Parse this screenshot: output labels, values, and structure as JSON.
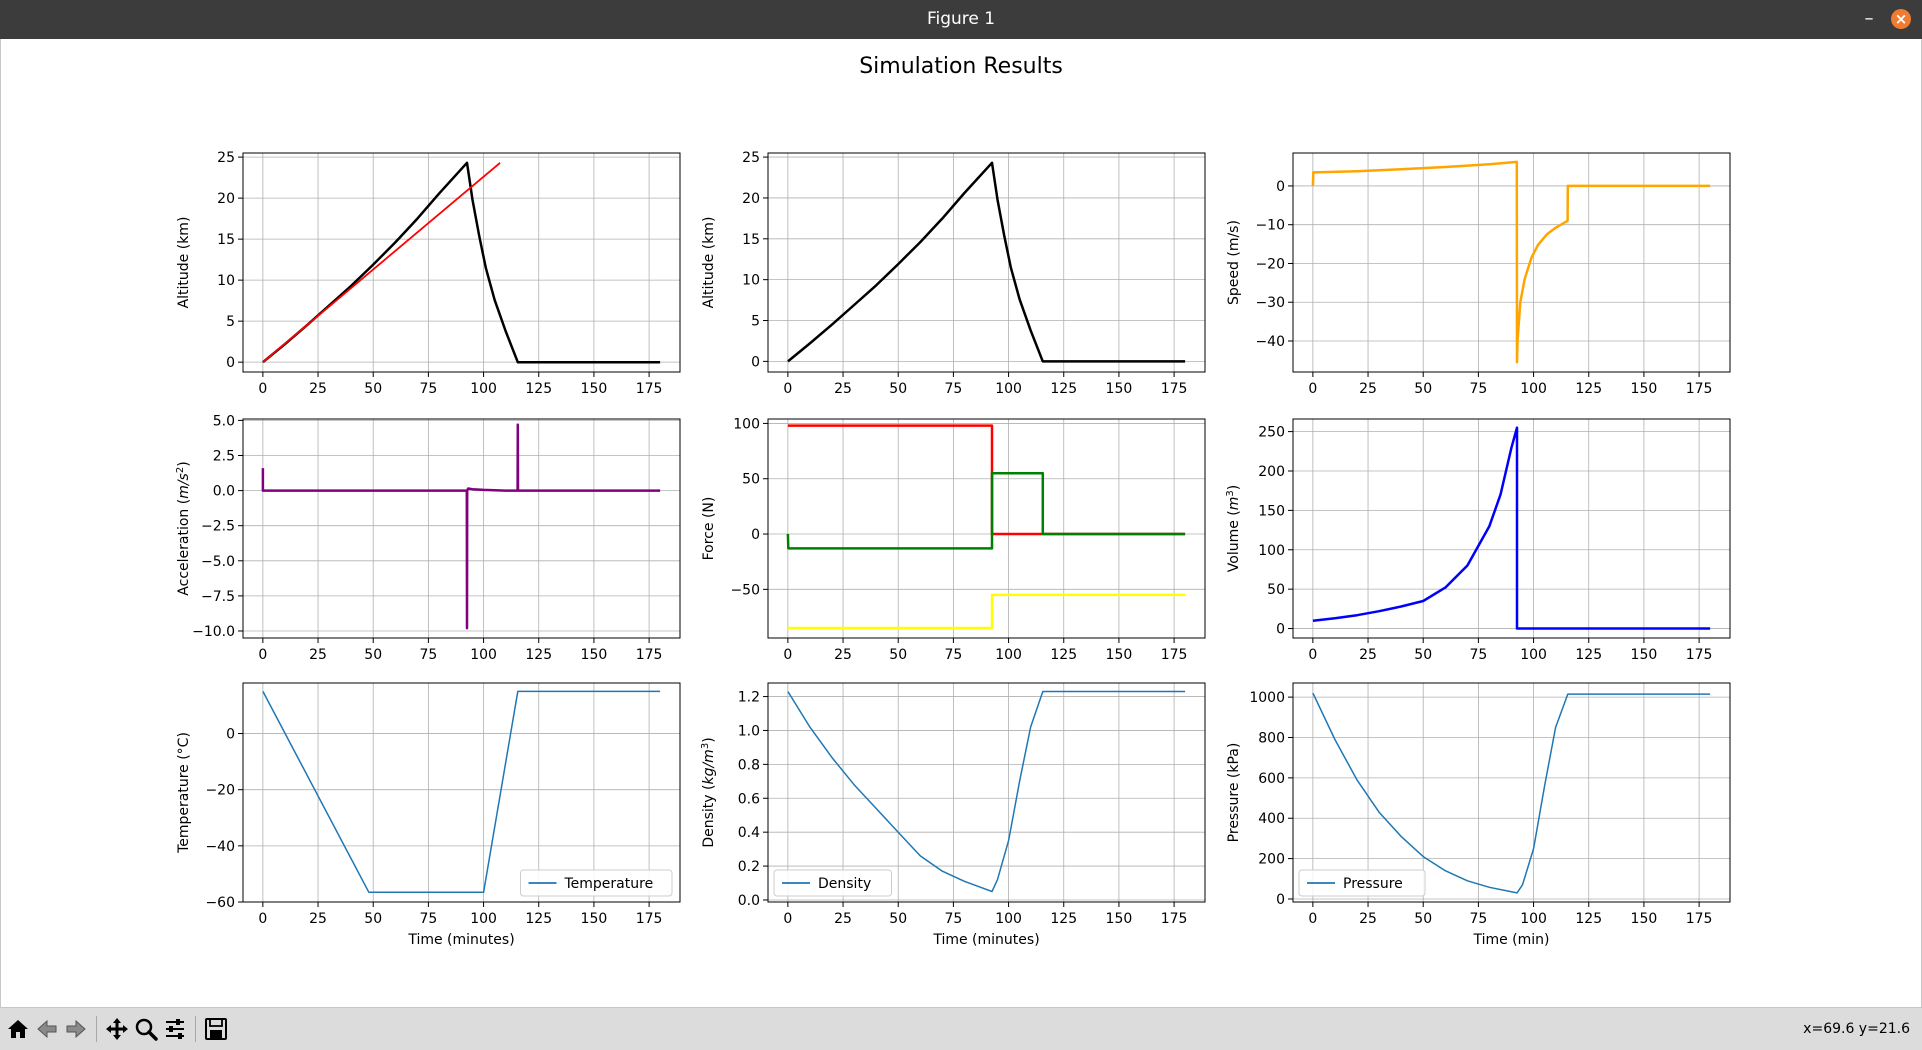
{
  "window": {
    "title": "Figure 1",
    "minimize_label": "–",
    "close_label": "×"
  },
  "figure": {
    "suptitle": "Simulation Results"
  },
  "toolbar": {
    "buttons": [
      "home-icon",
      "back-icon",
      "forward-icon",
      "pan-icon",
      "zoom-icon",
      "configure-subplots-icon",
      "save-icon"
    ],
    "coords": "x=69.6 y=21.6"
  },
  "chart_data": [
    {
      "type": "line",
      "ylabel": "Altitude (km)",
      "xlabel": "",
      "xlim": [
        -9,
        189
      ],
      "ylim": [
        -1.2,
        25.5
      ],
      "xticks": [
        0,
        25,
        50,
        75,
        100,
        125,
        150,
        175
      ],
      "yticks": [
        0,
        5,
        10,
        15,
        20,
        25
      ],
      "series": [
        {
          "color": "#000000",
          "width": 2.5,
          "x": [
            0,
            10,
            20,
            30,
            40,
            50,
            60,
            70,
            80,
            92.5,
            93.5,
            95,
            98,
            101,
            105,
            110,
            115.5,
            180
          ],
          "y": [
            0,
            2.2,
            4.5,
            6.9,
            9.3,
            11.9,
            14.6,
            17.5,
            20.6,
            24.3,
            22.5,
            19.8,
            15.4,
            11.5,
            7.6,
            3.8,
            0,
            0
          ]
        },
        {
          "color": "#ff0000",
          "width": 1.8,
          "x": [
            0,
            107.5
          ],
          "y": [
            0,
            24.3
          ]
        }
      ]
    },
    {
      "type": "line",
      "ylabel": "Altitude (km)",
      "xlabel": "",
      "xlim": [
        -9,
        189
      ],
      "ylim": [
        -1.3,
        25.5
      ],
      "xticks": [
        0,
        25,
        50,
        75,
        100,
        125,
        150,
        175
      ],
      "yticks": [
        0,
        5,
        10,
        15,
        20,
        25
      ],
      "series": [
        {
          "color": "#000000",
          "width": 2.5,
          "x": [
            0,
            10,
            20,
            30,
            40,
            50,
            60,
            70,
            80,
            92.5,
            93.5,
            95,
            98,
            101,
            105,
            110,
            115.5,
            180
          ],
          "y": [
            0,
            2.2,
            4.5,
            6.9,
            9.3,
            11.9,
            14.6,
            17.5,
            20.6,
            24.3,
            22.5,
            19.8,
            15.4,
            11.5,
            7.6,
            3.8,
            0,
            0
          ]
        }
      ]
    },
    {
      "type": "line",
      "ylabel": "Speed (m/s)",
      "xlabel": "",
      "xlim": [
        -9,
        189
      ],
      "ylim": [
        -48,
        8.5
      ],
      "xticks": [
        0,
        25,
        50,
        75,
        100,
        125,
        150,
        175
      ],
      "yticks": [
        0,
        -10,
        -20,
        -30,
        -40
      ],
      "series": [
        {
          "color": "#ffa500",
          "width": 2.5,
          "x": [
            0,
            0.2,
            20,
            40,
            60,
            80,
            92.4,
            92.5,
            92.7,
            94,
            96,
            99,
            102,
            106,
            110,
            115.4,
            115.5,
            180
          ],
          "y": [
            0,
            3.5,
            3.8,
            4.3,
            4.9,
            5.6,
            6.2,
            -45.5,
            -40,
            -30,
            -24,
            -18.5,
            -15.2,
            -12.5,
            -10.8,
            -9,
            0,
            0
          ]
        }
      ]
    },
    {
      "type": "line",
      "ylabel": "Acceleration ($m/s^2$)",
      "xlabel": "",
      "xlim": [
        -9,
        189
      ],
      "ylim": [
        -10.5,
        5.1
      ],
      "xticks": [
        0,
        25,
        50,
        75,
        100,
        125,
        150,
        175
      ],
      "yticks": [
        5.0,
        2.5,
        0.0,
        -2.5,
        -5.0,
        -7.5,
        -10.0
      ],
      "series": [
        {
          "color": "#800080",
          "width": 2.5,
          "x": [
            0,
            0,
            0.2,
            92.4,
            92.5,
            92.6,
            93,
            95,
            100,
            110,
            115.4,
            115.5,
            115.6,
            180
          ],
          "y": [
            1.6,
            0,
            0,
            0,
            -9.8,
            0,
            0.15,
            0.1,
            0.05,
            0,
            0,
            4.7,
            0,
            0
          ]
        }
      ]
    },
    {
      "type": "line",
      "ylabel": "Force (N)",
      "xlabel": "",
      "xlim": [
        -9,
        189
      ],
      "ylim": [
        -94,
        104
      ],
      "xticks": [
        0,
        25,
        50,
        75,
        100,
        125,
        150,
        175
      ],
      "yticks": [
        100,
        50,
        0,
        -50
      ],
      "series": [
        {
          "color": "#ff0000",
          "width": 2.5,
          "x": [
            0,
            92.5,
            92.5,
            180
          ],
          "y": [
            98,
            98,
            0,
            0
          ]
        },
        {
          "color": "#008000",
          "width": 2.5,
          "x": [
            0,
            0.2,
            92.5,
            92.5,
            115.5,
            115.5,
            180
          ],
          "y": [
            0,
            -13,
            -13,
            55,
            55,
            0,
            0
          ]
        },
        {
          "color": "#ffff00",
          "width": 2.5,
          "x": [
            0,
            92.5,
            92.5,
            180
          ],
          "y": [
            -85,
            -85,
            -55,
            -55
          ]
        }
      ]
    },
    {
      "type": "line",
      "ylabel": "Volume ($m^3$)",
      "xlabel": "",
      "xlim": [
        -9,
        189
      ],
      "ylim": [
        -12,
        266
      ],
      "xticks": [
        0,
        25,
        50,
        75,
        100,
        125,
        150,
        175
      ],
      "yticks": [
        0,
        50,
        100,
        150,
        200,
        250
      ],
      "series": [
        {
          "color": "#0000ff",
          "width": 2.5,
          "x": [
            0,
            10,
            20,
            30,
            40,
            50,
            60,
            70,
            80,
            85,
            90,
            92.5,
            92.5,
            180
          ],
          "y": [
            10,
            13,
            17,
            22,
            28,
            35,
            52,
            80,
            130,
            170,
            230,
            255,
            0,
            0
          ]
        }
      ]
    },
    {
      "type": "line",
      "ylabel": "Temperature (°C)",
      "xlabel": "Time (minutes)",
      "xlim": [
        -9,
        189
      ],
      "ylim": [
        -60,
        18
      ],
      "xticks": [
        0,
        25,
        50,
        75,
        100,
        125,
        150,
        175
      ],
      "yticks": [
        0,
        -20,
        -40,
        -60
      ],
      "legend": {
        "labels": [
          "Temperature"
        ],
        "loc": "lower right"
      },
      "series": [
        {
          "name": "Temperature",
          "color": "#1f77b4",
          "width": 1.5,
          "x": [
            0,
            48,
            100,
            115.5,
            180
          ],
          "y": [
            15,
            -56.5,
            -56.5,
            15,
            15
          ]
        }
      ]
    },
    {
      "type": "line",
      "ylabel": "Density ($kg/m^3$)",
      "xlabel": "Time (minutes)",
      "xlim": [
        -9,
        189
      ],
      "ylim": [
        -0.012,
        1.28
      ],
      "xticks": [
        0,
        25,
        50,
        75,
        100,
        125,
        150,
        175
      ],
      "yticks": [
        0.0,
        0.2,
        0.4,
        0.6,
        0.8,
        1.0,
        1.2
      ],
      "legend": {
        "labels": [
          "Density"
        ],
        "loc": "lower left"
      },
      "series": [
        {
          "name": "Density",
          "color": "#1f77b4",
          "width": 1.5,
          "x": [
            0,
            10,
            20,
            30,
            40,
            50,
            60,
            70,
            80,
            92.5,
            95,
            100,
            105,
            110,
            115.5,
            180
          ],
          "y": [
            1.23,
            1.02,
            0.84,
            0.68,
            0.54,
            0.4,
            0.26,
            0.17,
            0.11,
            0.05,
            0.12,
            0.35,
            0.7,
            1.02,
            1.23,
            1.23
          ]
        }
      ]
    },
    {
      "type": "line",
      "ylabel": "Pressure (kPa)",
      "xlabel": "Time (min)",
      "xlim": [
        -9,
        189
      ],
      "ylim": [
        -15,
        1070
      ],
      "xticks": [
        0,
        25,
        50,
        75,
        100,
        125,
        150,
        175
      ],
      "yticks": [
        0,
        200,
        400,
        600,
        800,
        1000
      ],
      "legend": {
        "labels": [
          "Pressure"
        ],
        "loc": "lower left"
      },
      "series": [
        {
          "name": "Pressure",
          "color": "#1f77b4",
          "width": 1.5,
          "x": [
            0,
            10,
            20,
            30,
            40,
            50,
            60,
            70,
            80,
            92.5,
            95,
            100,
            105,
            110,
            115.5,
            180
          ],
          "y": [
            1020,
            790,
            590,
            430,
            310,
            210,
            140,
            90,
            58,
            30,
            70,
            250,
            560,
            850,
            1015,
            1015
          ]
        }
      ]
    }
  ]
}
